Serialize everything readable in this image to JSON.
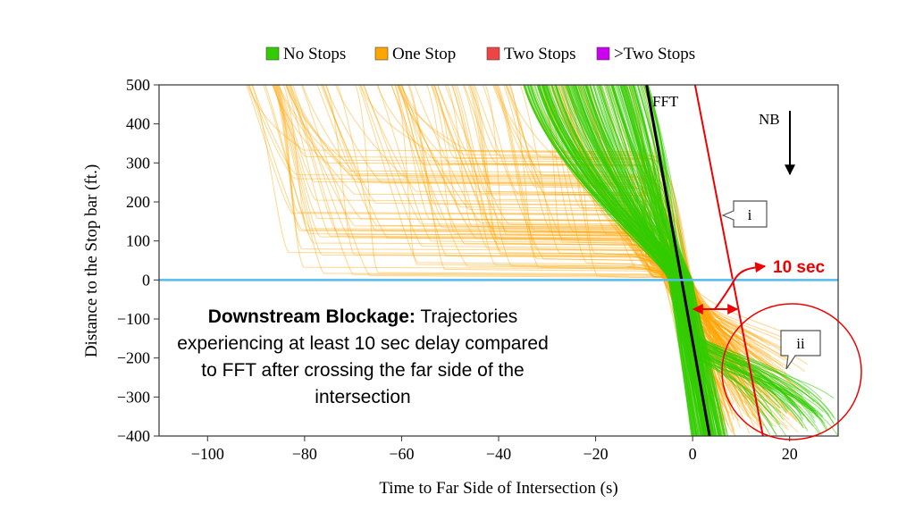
{
  "chart_data": {
    "type": "line",
    "xlabel": "Time to Far Side of Intersection (s)",
    "ylabel": "Distance to the Stop bar (ft.)",
    "xlim": [
      -110,
      30
    ],
    "ylim": [
      -400,
      500
    ],
    "xticks": [
      -100,
      -80,
      -60,
      -40,
      -20,
      0,
      20
    ],
    "yticks": [
      500,
      400,
      300,
      200,
      100,
      0,
      -100,
      -200,
      -300,
      -400
    ],
    "grid": false,
    "legend_position": "top",
    "legend": [
      {
        "label": "No Stops",
        "color": "#33cc00"
      },
      {
        "label": "One Stop",
        "color": "#ffa500"
      },
      {
        "label": "Two Stops",
        "color": "#ee4444"
      },
      {
        "label": ">Two Stops",
        "color": "#cc00ee"
      }
    ],
    "series": [
      {
        "name": "FFT",
        "type": "reference-line",
        "color": "#000000",
        "points": [
          [
            -9.5,
            500
          ],
          [
            3.5,
            -400
          ]
        ]
      },
      {
        "name": "",
        "type": "reference-line",
        "color": "#ee0000",
        "points": [
          [
            0.5,
            500
          ],
          [
            14.5,
            -400
          ]
        ]
      },
      {
        "name": "",
        "type": "stop-bar",
        "color": "#55bbee",
        "points": [
          [
            -110,
            0
          ],
          [
            30,
            0
          ]
        ]
      }
    ],
    "labels": {
      "fft": "FFT",
      "nb": "NB",
      "i": "i",
      "ii": "ii",
      "delay": "10 sec"
    }
  },
  "annotation": {
    "bold": "Downstream Blockage:",
    "text": " Trajectories experiencing at least 10 sec delay compared to FFT after crossing the far side of the intersection"
  }
}
